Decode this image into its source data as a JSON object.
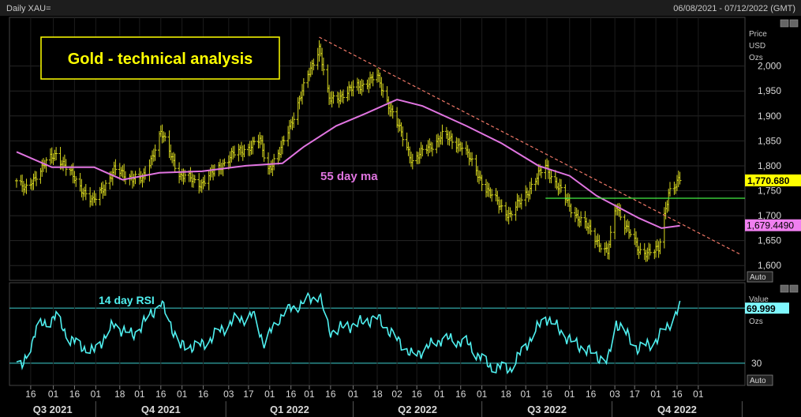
{
  "header": {
    "instrument": "Daily XAU=",
    "date_range": "06/08/2021 - 07/12/2022 (GMT)"
  },
  "chart_data": [
    {
      "type": "ohlc",
      "title": "Gold - technical analysis",
      "ylabel_lines": [
        "Price",
        "USD",
        "Ozs"
      ],
      "ylim": [
        1575,
        2085
      ],
      "yticks": [
        1600,
        1650,
        1700,
        1750,
        1800,
        1850,
        1900,
        1950,
        2000
      ],
      "ytick_labels": [
        "1,600",
        "1,650",
        "1,700",
        "1,750",
        "1,800",
        "1,850",
        "1,900",
        "1,950",
        "2,000"
      ],
      "price_path": [
        {
          "x": "2021-08-06",
          "y": 1770
        },
        {
          "x": "2021-08-12",
          "y": 1750
        },
        {
          "x": "2021-08-20",
          "y": 1783
        },
        {
          "x": "2021-09-03",
          "y": 1826
        },
        {
          "x": "2021-09-10",
          "y": 1796
        },
        {
          "x": "2021-09-29",
          "y": 1726
        },
        {
          "x": "2021-10-14",
          "y": 1790
        },
        {
          "x": "2021-11-03",
          "y": 1770
        },
        {
          "x": "2021-11-16",
          "y": 1866
        },
        {
          "x": "2021-11-30",
          "y": 1780
        },
        {
          "x": "2021-12-15",
          "y": 1765
        },
        {
          "x": "2022-01-05",
          "y": 1820
        },
        {
          "x": "2022-01-25",
          "y": 1850
        },
        {
          "x": "2022-01-31",
          "y": 1795
        },
        {
          "x": "2022-02-08",
          "y": 1825
        },
        {
          "x": "2022-03-08",
          "y": 2040
        },
        {
          "x": "2022-03-15",
          "y": 1930
        },
        {
          "x": "2022-04-18",
          "y": 1978
        },
        {
          "x": "2022-05-13",
          "y": 1810
        },
        {
          "x": "2022-06-03",
          "y": 1860
        },
        {
          "x": "2022-06-17",
          "y": 1840
        },
        {
          "x": "2022-07-06",
          "y": 1745
        },
        {
          "x": "2022-07-21",
          "y": 1700
        },
        {
          "x": "2022-08-15",
          "y": 1800
        },
        {
          "x": "2022-09-02",
          "y": 1715
        },
        {
          "x": "2022-09-28",
          "y": 1625
        },
        {
          "x": "2022-10-04",
          "y": 1720
        },
        {
          "x": "2022-10-20",
          "y": 1628
        },
        {
          "x": "2022-11-03",
          "y": 1630
        },
        {
          "x": "2022-11-10",
          "y": 1750
        },
        {
          "x": "2022-11-18",
          "y": 1770
        }
      ],
      "ma_label": "55 day ma",
      "ma_path": [
        {
          "x": "2021-08-06",
          "y": 1828
        },
        {
          "x": "2021-08-31",
          "y": 1797
        },
        {
          "x": "2021-09-30",
          "y": 1797
        },
        {
          "x": "2021-10-20",
          "y": 1772
        },
        {
          "x": "2021-11-15",
          "y": 1786
        },
        {
          "x": "2021-12-15",
          "y": 1789
        },
        {
          "x": "2022-01-15",
          "y": 1800
        },
        {
          "x": "2022-02-10",
          "y": 1805
        },
        {
          "x": "2022-02-25",
          "y": 1838
        },
        {
          "x": "2022-03-20",
          "y": 1880
        },
        {
          "x": "2022-04-10",
          "y": 1905
        },
        {
          "x": "2022-05-02",
          "y": 1933
        },
        {
          "x": "2022-05-20",
          "y": 1920
        },
        {
          "x": "2022-06-20",
          "y": 1880
        },
        {
          "x": "2022-07-15",
          "y": 1845
        },
        {
          "x": "2022-08-10",
          "y": 1800
        },
        {
          "x": "2022-09-01",
          "y": 1780
        },
        {
          "x": "2022-09-20",
          "y": 1740
        },
        {
          "x": "2022-10-20",
          "y": 1695
        },
        {
          "x": "2022-11-05",
          "y": 1675
        },
        {
          "x": "2022-11-18",
          "y": 1680
        }
      ],
      "trendline": {
        "from": {
          "x": "2022-03-08",
          "y": 2058
        },
        "to": {
          "x": "2022-12-31",
          "y": 1622
        }
      },
      "support_line": {
        "from_x": "2022-08-15",
        "y": 1735
      },
      "last_price_label": "1,770.680",
      "ma_last_label": "1,679.4490",
      "colors": {
        "bars": "#d6d61f",
        "ma": "#e074e0",
        "trend": "#f07868",
        "support": "#44ee44",
        "last_bg": "#ffff00",
        "ma_bg": "#f080f0"
      },
      "autoscale_label": "Auto"
    },
    {
      "type": "line",
      "label": "14 day RSI",
      "ylabel_lines": [
        "Value",
        "USD",
        "Ozs"
      ],
      "ylim": [
        15,
        85
      ],
      "yticks": [
        30
      ],
      "ytick_labels": [
        "30"
      ],
      "ref_levels": [
        70,
        30
      ],
      "rsi_path": [
        {
          "x": "2021-08-06",
          "y": 31
        },
        {
          "x": "2021-08-10",
          "y": 26
        },
        {
          "x": "2021-08-20",
          "y": 55
        },
        {
          "x": "2021-09-03",
          "y": 64
        },
        {
          "x": "2021-09-13",
          "y": 47
        },
        {
          "x": "2021-09-29",
          "y": 38
        },
        {
          "x": "2021-10-14",
          "y": 58
        },
        {
          "x": "2021-10-27",
          "y": 50
        },
        {
          "x": "2021-11-16",
          "y": 74
        },
        {
          "x": "2021-11-30",
          "y": 42
        },
        {
          "x": "2021-12-15",
          "y": 43
        },
        {
          "x": "2022-01-05",
          "y": 60
        },
        {
          "x": "2022-01-20",
          "y": 65
        },
        {
          "x": "2022-01-28",
          "y": 45
        },
        {
          "x": "2022-02-10",
          "y": 66
        },
        {
          "x": "2022-03-08",
          "y": 80
        },
        {
          "x": "2022-03-15",
          "y": 53
        },
        {
          "x": "2022-04-18",
          "y": 63
        },
        {
          "x": "2022-05-13",
          "y": 35
        },
        {
          "x": "2022-06-03",
          "y": 48
        },
        {
          "x": "2022-06-20",
          "y": 45
        },
        {
          "x": "2022-07-06",
          "y": 28
        },
        {
          "x": "2022-07-21",
          "y": 26
        },
        {
          "x": "2022-08-15",
          "y": 64
        },
        {
          "x": "2022-09-02",
          "y": 46
        },
        {
          "x": "2022-09-28",
          "y": 31
        },
        {
          "x": "2022-10-04",
          "y": 60
        },
        {
          "x": "2022-10-20",
          "y": 40
        },
        {
          "x": "2022-11-03",
          "y": 48
        },
        {
          "x": "2022-11-18",
          "y": 70
        }
      ],
      "last_value_label": "69.999",
      "colors": {
        "line": "#4ff0f0",
        "levels": "#3ecfcf",
        "last_bg": "#7ff8ff"
      },
      "autoscale_label": "Auto"
    }
  ],
  "x_axis": {
    "range": [
      "2021-08-01",
      "2023-01-03"
    ],
    "ticks": [
      {
        "x": "2021-08-16",
        "label": "16"
      },
      {
        "x": "2021-09-01",
        "label": "01"
      },
      {
        "x": "2021-09-16",
        "label": "16"
      },
      {
        "x": "2021-10-01",
        "label": "01"
      },
      {
        "x": "2021-10-18",
        "label": "18"
      },
      {
        "x": "2021-11-01",
        "label": "01"
      },
      {
        "x": "2021-11-16",
        "label": "16"
      },
      {
        "x": "2021-12-01",
        "label": "01"
      },
      {
        "x": "2021-12-16",
        "label": "16"
      },
      {
        "x": "2022-01-03",
        "label": "03"
      },
      {
        "x": "2022-01-17",
        "label": "17"
      },
      {
        "x": "2022-02-01",
        "label": "01"
      },
      {
        "x": "2022-02-16",
        "label": "16"
      },
      {
        "x": "2022-03-01",
        "label": "01"
      },
      {
        "x": "2022-03-16",
        "label": "16"
      },
      {
        "x": "2022-04-01",
        "label": "01"
      },
      {
        "x": "2022-04-18",
        "label": "18"
      },
      {
        "x": "2022-05-02",
        "label": "02"
      },
      {
        "x": "2022-05-16",
        "label": "16"
      },
      {
        "x": "2022-06-01",
        "label": "01"
      },
      {
        "x": "2022-06-16",
        "label": "16"
      },
      {
        "x": "2022-07-01",
        "label": "01"
      },
      {
        "x": "2022-07-18",
        "label": "18"
      },
      {
        "x": "2022-08-01",
        "label": "01"
      },
      {
        "x": "2022-08-16",
        "label": "16"
      },
      {
        "x": "2022-09-01",
        "label": "01"
      },
      {
        "x": "2022-09-16",
        "label": "16"
      },
      {
        "x": "2022-10-03",
        "label": "03"
      },
      {
        "x": "2022-10-17",
        "label": "17"
      },
      {
        "x": "2022-11-01",
        "label": "01"
      },
      {
        "x": "2022-11-16",
        "label": "16"
      },
      {
        "x": "2022-12-01",
        "label": "01"
      }
    ],
    "quarters": [
      {
        "label": "Q3 2021",
        "start": "2021-08-01",
        "end": "2021-10-01"
      },
      {
        "label": "Q4 2021",
        "start": "2021-10-01",
        "end": "2022-01-01"
      },
      {
        "label": "Q1 2022",
        "start": "2022-01-01",
        "end": "2022-04-01"
      },
      {
        "label": "Q2 2022",
        "start": "2022-04-01",
        "end": "2022-07-01"
      },
      {
        "label": "Q3 2022",
        "start": "2022-07-01",
        "end": "2022-10-01"
      },
      {
        "label": "Q4 2022",
        "start": "2022-10-01",
        "end": "2023-01-01"
      }
    ]
  }
}
